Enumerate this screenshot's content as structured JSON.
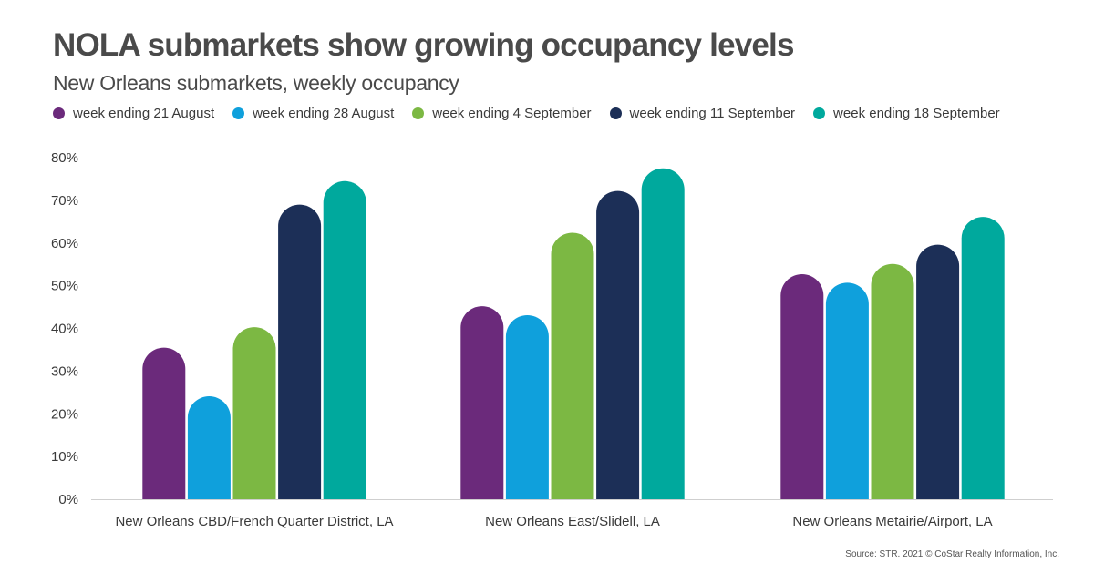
{
  "chart_data": {
    "type": "bar",
    "title": "NOLA submarkets show growing occupancy levels",
    "subtitle": "New Orleans submarkets, weekly occupancy",
    "xlabel": "",
    "ylabel": "",
    "ylim": [
      0,
      80
    ],
    "yticks": [
      0,
      10,
      20,
      30,
      40,
      50,
      60,
      70,
      80
    ],
    "ytick_labels": [
      "0%",
      "10%",
      "20%",
      "30%",
      "40%",
      "50%",
      "60%",
      "70%",
      "80%"
    ],
    "categories": [
      "New Orleans CBD/French Quarter District, LA",
      "New Orleans East/Slidell, LA",
      "New Orleans Metairie/Airport, LA"
    ],
    "series": [
      {
        "name": "week ending 21 August",
        "color": "#6b2a7b",
        "values": [
          35.5,
          45.2,
          52.7
        ]
      },
      {
        "name": "week ending 28 August",
        "color": "#0fa0dc",
        "values": [
          24.1,
          43.1,
          50.7
        ]
      },
      {
        "name": "week ending 4 September",
        "color": "#7cb843",
        "values": [
          40.3,
          62.4,
          55.1
        ]
      },
      {
        "name": "week ending 11 September",
        "color": "#1c2f57",
        "values": [
          69.0,
          72.2,
          59.6
        ]
      },
      {
        "name": "week ending 18 September",
        "color": "#00a99d",
        "values": [
          74.5,
          77.5,
          66.1
        ]
      }
    ],
    "grid": false,
    "legend_position": "top-left"
  },
  "source": "Source: STR. 2021 © CoStar Realty Information, Inc."
}
